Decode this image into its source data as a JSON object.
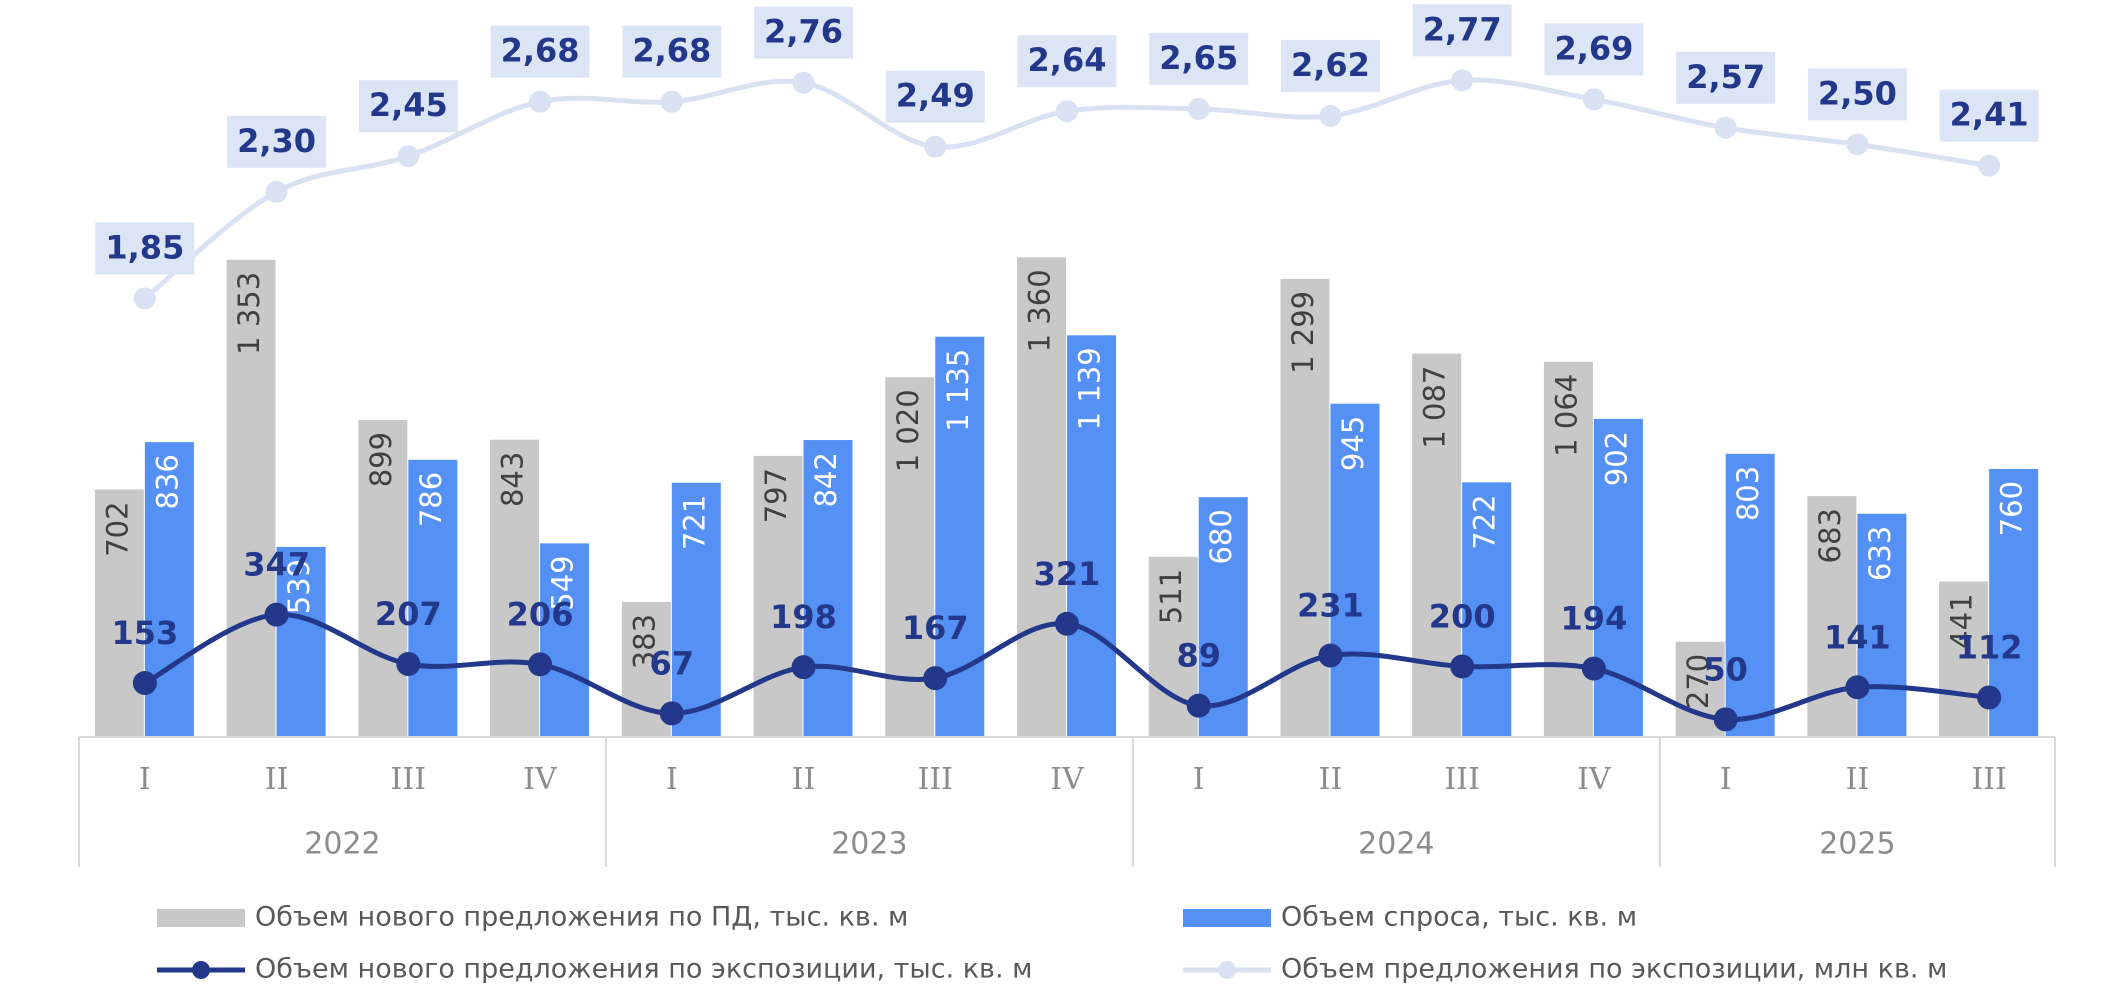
{
  "chart_data": {
    "type": "bar",
    "groups": [
      {
        "label": "2022",
        "categories": [
          "I",
          "II",
          "III",
          "IV"
        ]
      },
      {
        "label": "2023",
        "categories": [
          "I",
          "II",
          "III",
          "IV"
        ]
      },
      {
        "label": "2024",
        "categories": [
          "I",
          "II",
          "III",
          "IV"
        ]
      },
      {
        "label": "2025",
        "categories": [
          "I",
          "II",
          "III"
        ]
      }
    ],
    "ylim": [
      0,
      2050
    ],
    "y2lim": [
      0,
      3.05
    ],
    "series": [
      {
        "name": "Объем нового предложения по ПД, тыс. кв. м",
        "type": "bar",
        "color": "#c8c8c8",
        "values": [
          702,
          1353,
          899,
          843,
          383,
          797,
          1020,
          1360,
          511,
          1299,
          1087,
          1064,
          270,
          683,
          441
        ],
        "value_labels": [
          "702",
          "1 353",
          "899",
          "843",
          "383",
          "797",
          "1 020",
          "1 360",
          "511",
          "1 299",
          "1 087",
          "1 064",
          "270",
          "683",
          "441"
        ]
      },
      {
        "name": "Объем спроса, тыс. кв. м",
        "type": "bar",
        "color": "#5591f5",
        "values": [
          836,
          539,
          786,
          549,
          721,
          842,
          1135,
          1139,
          680,
          945,
          722,
          902,
          803,
          633,
          760
        ],
        "value_labels": [
          "836",
          "539",
          "786",
          "549",
          "721",
          "842",
          "1 135",
          "1 139",
          "680",
          "945",
          "722",
          "902",
          "803",
          "633",
          "760"
        ]
      },
      {
        "name": "Объем нового предложения по экспозиции, тыс. кв. м",
        "type": "line",
        "color": "#23388a",
        "values": [
          153,
          347,
          207,
          206,
          67,
          198,
          167,
          321,
          89,
          231,
          200,
          194,
          50,
          141,
          112
        ]
      },
      {
        "name": "Объем предложения по экспозиции, млн кв. м",
        "type": "line",
        "axis": "y2",
        "color": "#d9e2f3",
        "values": [
          1.85,
          2.3,
          2.45,
          2.68,
          2.68,
          2.76,
          2.49,
          2.64,
          2.65,
          2.62,
          2.77,
          2.69,
          2.57,
          2.5,
          2.41
        ],
        "value_labels": [
          "1,85",
          "2,30",
          "2,45",
          "2,68",
          "2,68",
          "2,76",
          "2,49",
          "2,64",
          "2,65",
          "2,62",
          "2,77",
          "2,69",
          "2,57",
          "2,50",
          "2,41"
        ]
      }
    ]
  }
}
